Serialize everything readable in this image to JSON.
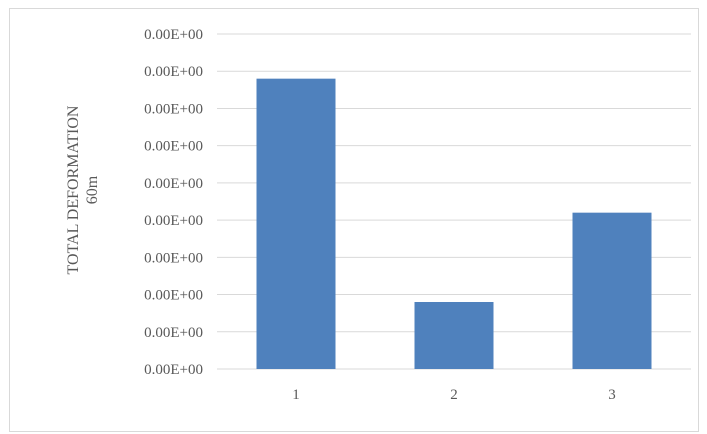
{
  "chart_data": {
    "type": "bar",
    "categories": [
      "1",
      "2",
      "3"
    ],
    "values": [
      7.8,
      1.8,
      4.2
    ],
    "ylim": [
      0,
      9
    ],
    "y_tick_labels": [
      "0.00E+00",
      "0.00E+00",
      "0.00E+00",
      "0.00E+00",
      "0.00E+00",
      "0.00E+00",
      "0.00E+00",
      "0.00E+00",
      "0.00E+00",
      "0.00E+00"
    ],
    "ylabel": [
      "TOTAL DEFORMATION",
      "60m"
    ],
    "xlabel": "",
    "title": "",
    "grid": true,
    "legend": "none",
    "bar_color": "#4f81bd",
    "grid_color": "#d9d9d9"
  }
}
